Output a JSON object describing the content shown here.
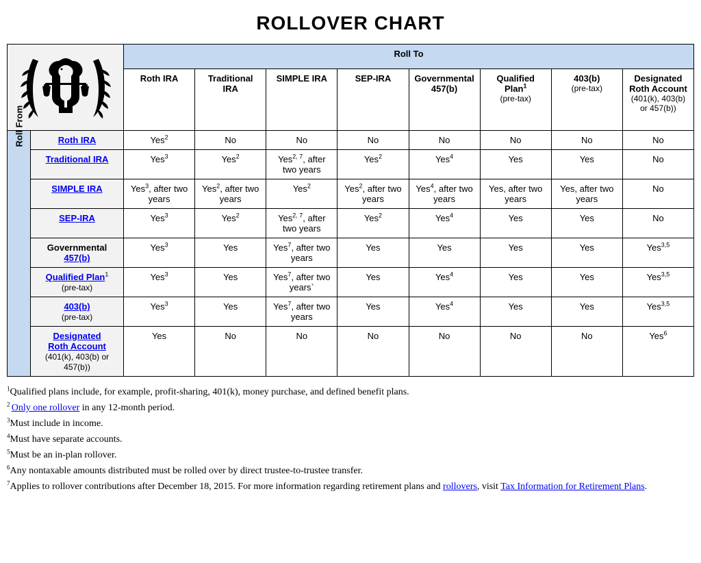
{
  "title": "ROLLOVER CHART",
  "headers": {
    "rollto": "Roll To",
    "rollfrom": "Roll From"
  },
  "columns": [
    {
      "main": "Roth IRA",
      "sub": ""
    },
    {
      "main": "Traditional IRA",
      "sub": ""
    },
    {
      "main": "SIMPLE IRA",
      "sub": ""
    },
    {
      "main": "SEP-IRA",
      "sub": ""
    },
    {
      "main": "Governmental 457(b)",
      "sub": ""
    },
    {
      "main": "Qualified Plan",
      "sup": "1",
      "sub": "(pre-tax)"
    },
    {
      "main": "403(b)",
      "sub": "(pre-tax)"
    },
    {
      "main": "Designated Roth Account",
      "sub": "(401(k), 403(b) or 457(b))"
    }
  ],
  "rows": [
    {
      "label": "Roth IRA",
      "link": true,
      "sub": "",
      "cells": [
        {
          "text": "Yes",
          "sup": "2"
        },
        {
          "text": "No"
        },
        {
          "text": "No"
        },
        {
          "text": "No"
        },
        {
          "text": "No"
        },
        {
          "text": "No"
        },
        {
          "text": "No"
        },
        {
          "text": "No"
        }
      ]
    },
    {
      "label": "Traditional IRA",
      "link": true,
      "sub": "",
      "cells": [
        {
          "text": "Yes",
          "sup": "3"
        },
        {
          "text": "Yes",
          "sup": "2"
        },
        {
          "text": "Yes",
          "sup": "2, 7",
          "after": ", after two years"
        },
        {
          "text": "Yes",
          "sup": "2"
        },
        {
          "text": "Yes",
          "sup": "4"
        },
        {
          "text": "Yes"
        },
        {
          "text": "Yes"
        },
        {
          "text": "No"
        }
      ]
    },
    {
      "label": "SIMPLE IRA",
      "link": true,
      "sub": "",
      "cells": [
        {
          "text": "Yes",
          "sup": "3",
          "after": ", after two years"
        },
        {
          "text": "Yes",
          "sup": "2",
          "after": ", after two years"
        },
        {
          "text": "Yes",
          "sup": "2"
        },
        {
          "text": "Yes",
          "sup": "2",
          "after": ", after two years"
        },
        {
          "text": "Yes",
          "sup": "4",
          "after": ", after two years"
        },
        {
          "text": "Yes, after two years"
        },
        {
          "text": "Yes, after two years"
        },
        {
          "text": "No"
        }
      ]
    },
    {
      "label": "SEP-IRA",
      "link": true,
      "sub": "",
      "cells": [
        {
          "text": "Yes",
          "sup": "3"
        },
        {
          "text": "Yes",
          "sup": "2"
        },
        {
          "text": "Yes",
          "sup": "2, 7",
          "after": ", after two years"
        },
        {
          "text": "Yes",
          "sup": "2"
        },
        {
          "text": "Yes",
          "sup": "4"
        },
        {
          "text": "Yes"
        },
        {
          "text": "Yes"
        },
        {
          "text": "No"
        }
      ]
    },
    {
      "label": "Governmental",
      "link_part2": "457(b)",
      "link": false,
      "sub": "",
      "cells": [
        {
          "text": "Yes",
          "sup": "3"
        },
        {
          "text": "Yes"
        },
        {
          "text": "Yes",
          "sup": "7",
          "after": ", after two years"
        },
        {
          "text": "Yes"
        },
        {
          "text": "Yes"
        },
        {
          "text": "Yes"
        },
        {
          "text": "Yes"
        },
        {
          "text": "Yes",
          "sup": "3,5"
        }
      ]
    },
    {
      "label": "Qualified Plan",
      "link": true,
      "sup": "1",
      "sub": "(pre-tax)",
      "cells": [
        {
          "text": "Yes",
          "sup": "3"
        },
        {
          "text": "Yes"
        },
        {
          "text": "Yes",
          "sup": "7",
          "after": ", after two years`"
        },
        {
          "text": "Yes"
        },
        {
          "text": "Yes",
          "sup": "4"
        },
        {
          "text": "Yes"
        },
        {
          "text": "Yes"
        },
        {
          "text": "Yes",
          "sup": "3,5"
        }
      ]
    },
    {
      "label": "403(b)",
      "link": true,
      "sub": "(pre-tax)",
      "cells": [
        {
          "text": "Yes",
          "sup": "3"
        },
        {
          "text": "Yes"
        },
        {
          "text": "Yes",
          "sup": "7",
          "after": ", after two years"
        },
        {
          "text": "Yes"
        },
        {
          "text": "Yes",
          "sup": "4"
        },
        {
          "text": "Yes"
        },
        {
          "text": "Yes"
        },
        {
          "text": "Yes",
          "sup": "3,5"
        }
      ]
    },
    {
      "label": "Designated",
      "link_part2": "Roth Account",
      "link": true,
      "sub": "(401(k), 403(b) or 457(b))",
      "cells": [
        {
          "text": "Yes"
        },
        {
          "text": "No"
        },
        {
          "text": "No"
        },
        {
          "text": "No"
        },
        {
          "text": "No"
        },
        {
          "text": "No"
        },
        {
          "text": "No"
        },
        {
          "text": "Yes",
          "sup": "6"
        }
      ]
    }
  ],
  "footnotes": {
    "f1": "Qualified plans include,  for example,  profit-sharing, 401(k),  money purchase, and  defined  benefit plans.",
    "f2_link": "Only one rollover",
    "f2_rest": " in any 12-month period.",
    "f3": "Must include in income.",
    "f4": "Must have separate accounts.",
    "f5": "Must be an in-plan rollover.",
    "f6": "Any nontaxable amounts distributed must be rolled over by direct trustee-to-trustee transfer.",
    "f7_a": "Applies to rollover contributions after December 18, 2015.  For more information regarding  retirement plans and  ",
    "f7_link1": "rollovers",
    "f7_b": ",  visit ",
    "f7_link2": "Tax Information for Retirement Plans",
    "f7_c": "."
  },
  "colors": {
    "header_bg": "#c5d9f1",
    "rowhead_bg": "#f2f2f2",
    "link": "#0000ee",
    "border": "#000000"
  }
}
